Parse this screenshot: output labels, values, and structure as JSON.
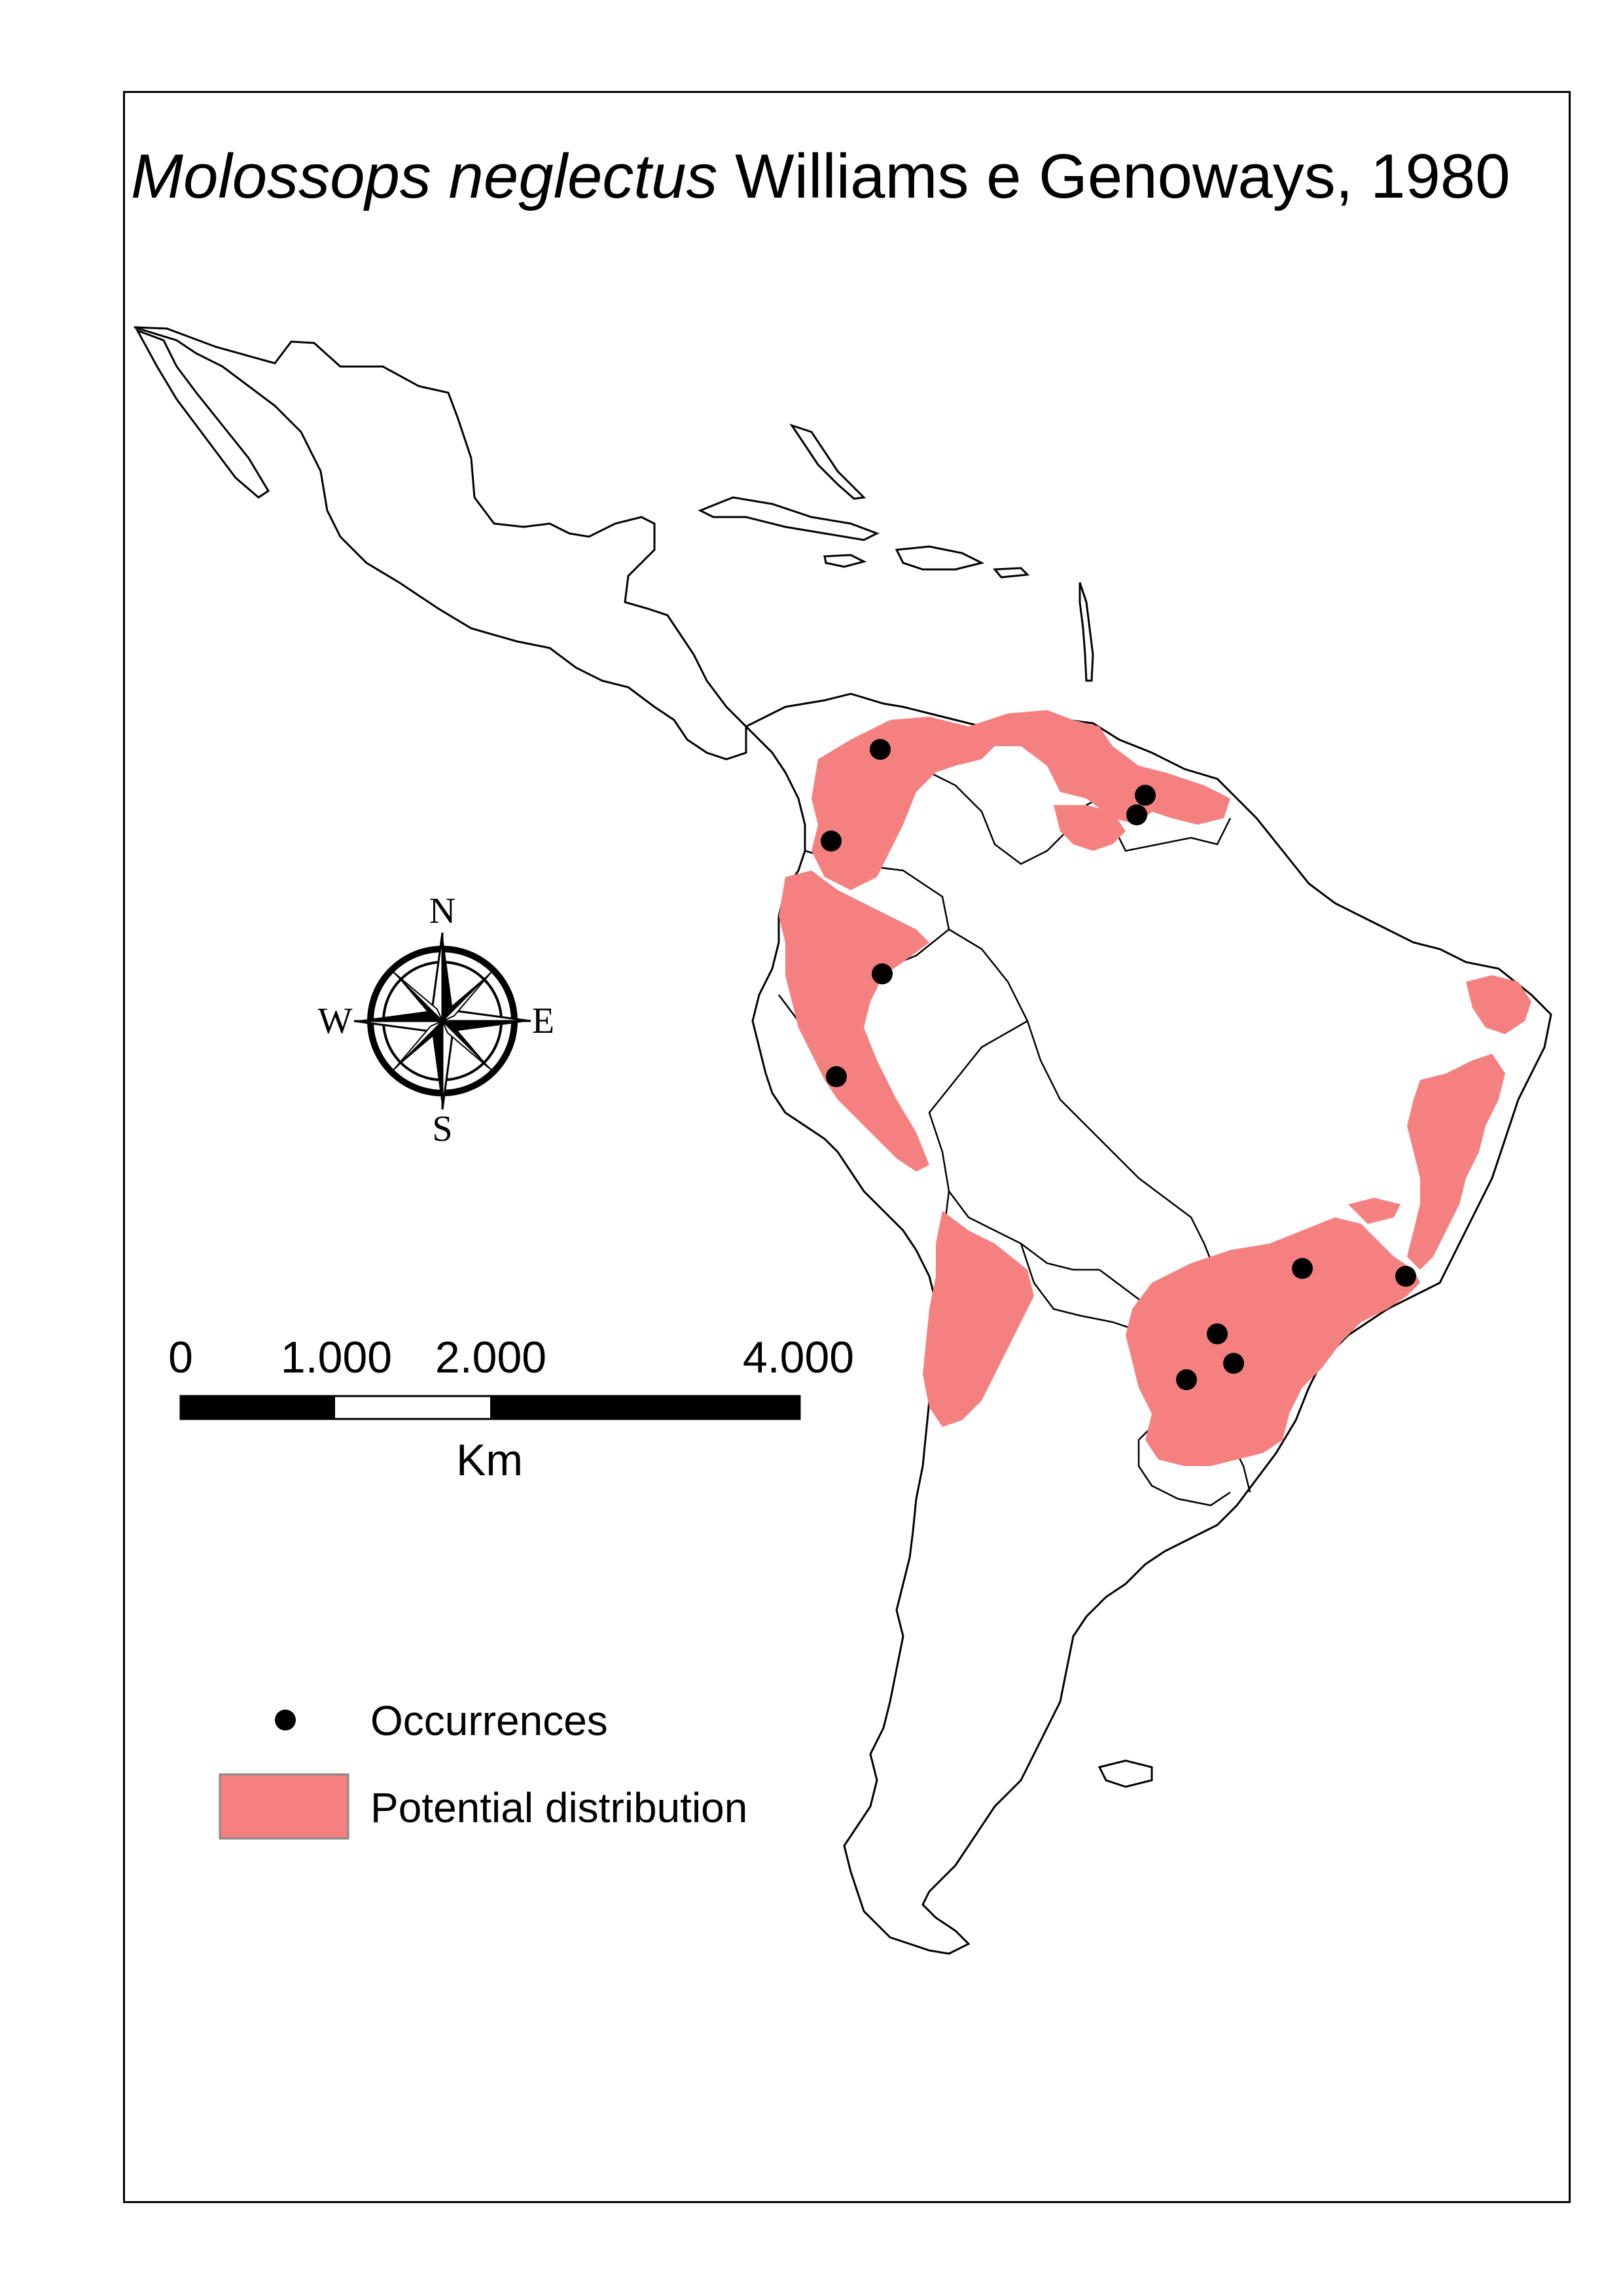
{
  "title": {
    "species": "Molossops neglectus",
    "authority": "Williams e Genoways, 1980"
  },
  "compass": {
    "n": "N",
    "s": "S",
    "e": "E",
    "w": "W"
  },
  "scale_bar": {
    "labels": [
      "0",
      "1.000",
      "2.000",
      "4.000"
    ],
    "unit": "Km"
  },
  "legend": {
    "occurrences_label": "Occurrences",
    "distribution_label": "Potential distribution"
  },
  "colors": {
    "distribution": "#f58080",
    "occurrence": "#000000",
    "land_outline": "#000000"
  }
}
